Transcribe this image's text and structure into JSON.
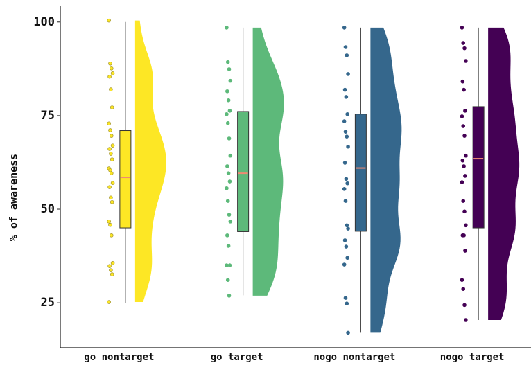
{
  "chart_data": {
    "type": "raincloud",
    "y_label": "% of awareness",
    "ylim": [
      13,
      104.4
    ],
    "yticks": [
      25,
      50,
      75,
      100
    ],
    "series": [
      {
        "name": "go nontarget",
        "color": "#fde725",
        "whisker_low": 25,
        "q1": 45,
        "median": 58.5,
        "q3": 71,
        "whisker_high": 100,
        "values": [
          100.4,
          88.9,
          87.6,
          86.3,
          85.4,
          82,
          77.2,
          72.9,
          71.1,
          69.6,
          67,
          66.1,
          64.8,
          63.3,
          60.9,
          60.4,
          59.6,
          57,
          55.9,
          53.1,
          51.9,
          46.7,
          45.8,
          43,
          35.6,
          34.8,
          33.7,
          32.6,
          25.2
        ]
      },
      {
        "name": "go target",
        "color": "#5db97a",
        "whisker_low": 27,
        "q1": 44,
        "median": 59.6,
        "q3": 76.1,
        "whisker_high": 98.5,
        "values": [
          98.5,
          89.3,
          87.4,
          84.3,
          81.5,
          79.1,
          76.3,
          75.4,
          73,
          68.9,
          64.3,
          61.5,
          59.6,
          57.4,
          55.6,
          52.2,
          48.5,
          46.7,
          43,
          40.2,
          35,
          35,
          31.1,
          26.9
        ]
      },
      {
        "name": "nogo nontarget",
        "color": "#35678c",
        "whisker_low": 17,
        "q1": 44.1,
        "median": 61,
        "q3": 75.4,
        "whisker_high": 98.5,
        "values": [
          98.5,
          93.3,
          91.1,
          86.1,
          81.9,
          80,
          75.4,
          73.5,
          70.7,
          69.4,
          66.7,
          62.4,
          58.1,
          56.9,
          55.4,
          52.2,
          45.7,
          44.8,
          41.7,
          40,
          37,
          35.2,
          26.3,
          24.8,
          17
        ]
      },
      {
        "name": "nogo target",
        "color": "#440154",
        "whisker_low": 20.4,
        "q1": 45,
        "median": 63.5,
        "q3": 77.4,
        "whisker_high": 98.5,
        "values": [
          98.5,
          94.4,
          93,
          89.6,
          84.1,
          81.9,
          76.3,
          74.8,
          72.2,
          69.6,
          64.3,
          63,
          61.5,
          58.9,
          57.2,
          52.2,
          49.4,
          45.7,
          43,
          43,
          38.9,
          31.1,
          28.7,
          24.4,
          20.4
        ]
      }
    ]
  }
}
